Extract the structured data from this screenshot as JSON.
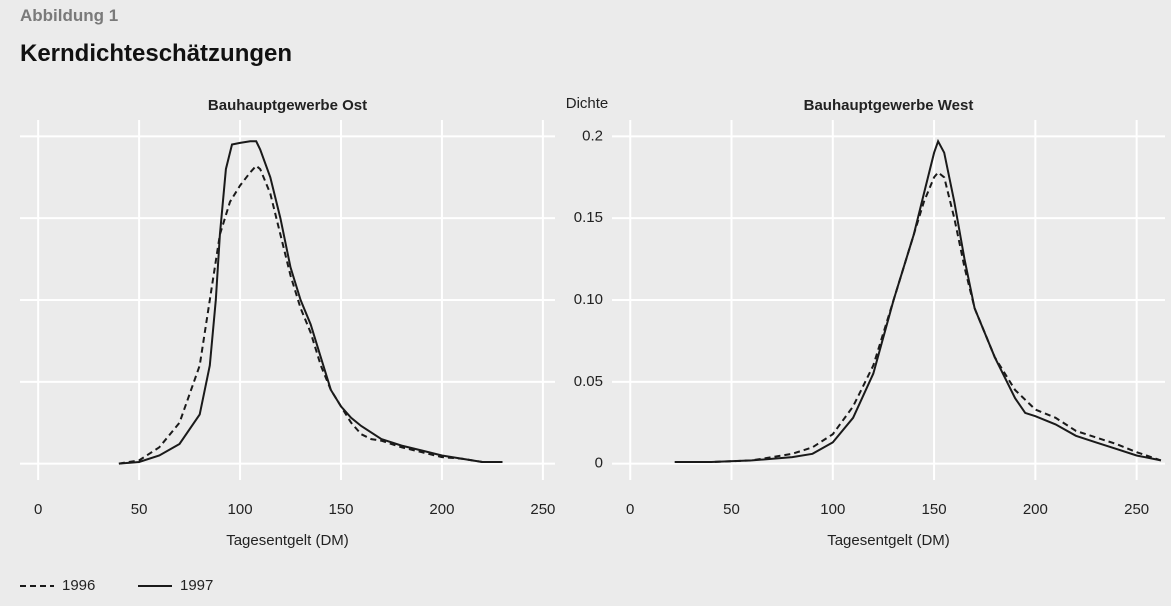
{
  "figure_label": "Abbildung 1",
  "title": "Kerndichteschätzungen",
  "chart_data": [
    {
      "type": "line",
      "title": "Bauhauptgewerbe Ost",
      "x_label": "Tagesentgelt (DM)",
      "xlim": [
        -9,
        256
      ],
      "xticks": [
        0,
        50,
        100,
        150,
        200,
        250
      ],
      "ylim": [
        -0.01,
        0.21
      ],
      "yticks": [
        0,
        0.05,
        {
          "value": 0.1,
          "label": "0.10"
        },
        0.15,
        0.2
      ],
      "grid": true,
      "series": [
        {
          "name": "1996",
          "color": "#1a1a1a",
          "line_style": "dashed",
          "x": [
            40,
            50,
            60,
            70,
            80,
            85,
            90,
            95,
            100,
            105,
            108,
            110,
            115,
            120,
            125,
            130,
            135,
            140,
            145,
            150,
            155,
            160,
            165,
            170,
            175,
            180,
            190,
            200,
            210,
            220,
            230
          ],
          "values": [
            0,
            0.002,
            0.01,
            0.025,
            0.06,
            0.1,
            0.14,
            0.16,
            0.17,
            0.178,
            0.182,
            0.18,
            0.165,
            0.14,
            0.115,
            0.095,
            0.08,
            0.06,
            0.045,
            0.035,
            0.025,
            0.018,
            0.015,
            0.014,
            0.012,
            0.01,
            0.007,
            0.004,
            0.003,
            0.001,
            0.001
          ]
        },
        {
          "name": "1997",
          "color": "#1a1a1a",
          "line_style": "solid",
          "x": [
            40,
            50,
            60,
            70,
            80,
            85,
            88,
            90,
            93,
            96,
            100,
            105,
            108,
            110,
            115,
            120,
            125,
            130,
            135,
            140,
            145,
            150,
            155,
            160,
            170,
            180,
            190,
            200,
            210,
            220,
            230
          ],
          "values": [
            0,
            0.001,
            0.005,
            0.012,
            0.03,
            0.06,
            0.1,
            0.14,
            0.18,
            0.195,
            0.196,
            0.197,
            0.197,
            0.192,
            0.175,
            0.15,
            0.12,
            0.1,
            0.085,
            0.065,
            0.045,
            0.035,
            0.028,
            0.023,
            0.015,
            0.011,
            0.008,
            0.005,
            0.003,
            0.001,
            0.001
          ]
        }
      ]
    },
    {
      "type": "line",
      "title": "Bauhauptgewerbe West",
      "x_label": "Tagesentgelt (DM)",
      "y_label": "Dichte",
      "xlim": [
        -9,
        264
      ],
      "xticks": [
        0,
        50,
        100,
        150,
        200,
        250
      ],
      "ylim": [
        -0.01,
        0.21
      ],
      "yticks": [
        0,
        0.05,
        {
          "value": 0.1,
          "label": "0.10"
        },
        0.15,
        0.2
      ],
      "grid": true,
      "series": [
        {
          "color": "#1a1a1a",
          "line_style": "dashed",
          "x": [
            22,
            40,
            60,
            80,
            90,
            100,
            110,
            120,
            130,
            140,
            145,
            150,
            152,
            155,
            160,
            165,
            170,
            175,
            180,
            190,
            200,
            210,
            220,
            230,
            240,
            250,
            262
          ],
          "values": [
            0.001,
            0.001,
            0.002,
            0.006,
            0.01,
            0.018,
            0.035,
            0.06,
            0.1,
            0.14,
            0.16,
            0.175,
            0.178,
            0.175,
            0.15,
            0.12,
            0.095,
            0.08,
            0.065,
            0.045,
            0.033,
            0.028,
            0.02,
            0.016,
            0.012,
            0.007,
            0.002
          ]
        },
        {
          "color": "#1a1a1a",
          "line_style": "solid",
          "x": [
            22,
            40,
            60,
            80,
            90,
            100,
            110,
            120,
            130,
            140,
            145,
            150,
            152,
            155,
            160,
            165,
            170,
            175,
            180,
            190,
            195,
            200,
            210,
            220,
            230,
            240,
            250,
            262
          ],
          "values": [
            0.001,
            0.001,
            0.002,
            0.004,
            0.006,
            0.013,
            0.028,
            0.055,
            0.1,
            0.14,
            0.165,
            0.19,
            0.197,
            0.19,
            0.16,
            0.125,
            0.095,
            0.08,
            0.065,
            0.04,
            0.031,
            0.029,
            0.024,
            0.017,
            0.013,
            0.009,
            0.005,
            0.002
          ]
        }
      ]
    }
  ]
}
